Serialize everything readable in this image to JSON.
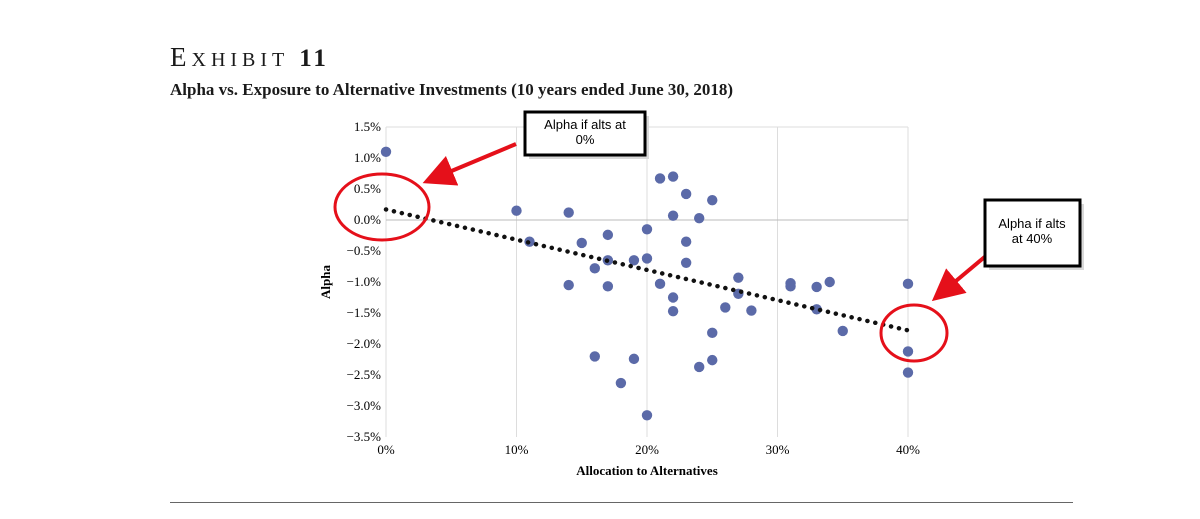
{
  "header": {
    "exhibit_first": "E",
    "exhibit_rest": "XHIBIT",
    "exhibit_number": "11",
    "subtitle": "Alpha vs. Exposure to Alternative Investments (10 years ended June 30, 2018)"
  },
  "callouts": {
    "left": "Alpha if alts at 0%",
    "right": "Alpha if alts at 40%"
  },
  "colors": {
    "points": "#5b6aa8",
    "trendline": "#111111",
    "annotation": "#e5101a",
    "grid": "#dddddd"
  },
  "chart_data": {
    "type": "scatter",
    "xlabel": "Allocation to Alternatives",
    "ylabel": "Alpha",
    "xlim": [
      0,
      40
    ],
    "ylim": [
      -3.5,
      1.5
    ],
    "x_ticks": [
      0,
      10,
      20,
      30,
      40
    ],
    "x_tick_labels": [
      "0%",
      "10%",
      "20%",
      "30%",
      "40%"
    ],
    "y_ticks": [
      1.5,
      1.0,
      0.5,
      0.0,
      -0.5,
      -1.0,
      -1.5,
      -2.0,
      -2.5,
      -3.0,
      -3.5
    ],
    "y_tick_labels": [
      "1.5%",
      "1.0%",
      "0.5%",
      "0.0%",
      "−0.5%",
      "−1.0%",
      "−1.5%",
      "−2.0%",
      "−2.5%",
      "−3.0%",
      "−3.5%"
    ],
    "grid": "vertical",
    "points": [
      {
        "x": 0,
        "y": 1.1
      },
      {
        "x": 10,
        "y": 0.15
      },
      {
        "x": 11,
        "y": -0.35
      },
      {
        "x": 14,
        "y": 0.12
      },
      {
        "x": 14,
        "y": -1.05
      },
      {
        "x": 15,
        "y": -0.37
      },
      {
        "x": 16,
        "y": -0.78
      },
      {
        "x": 16,
        "y": -2.2
      },
      {
        "x": 17,
        "y": -0.24
      },
      {
        "x": 17,
        "y": -0.65
      },
      {
        "x": 17,
        "y": -1.07
      },
      {
        "x": 18,
        "y": -2.63
      },
      {
        "x": 19,
        "y": -0.65
      },
      {
        "x": 19,
        "y": -2.24
      },
      {
        "x": 20,
        "y": -0.15
      },
      {
        "x": 20,
        "y": -0.62
      },
      {
        "x": 20,
        "y": -3.15
      },
      {
        "x": 21,
        "y": 0.67
      },
      {
        "x": 21,
        "y": -1.03
      },
      {
        "x": 22,
        "y": 0.7
      },
      {
        "x": 22,
        "y": 0.07
      },
      {
        "x": 22,
        "y": -1.25
      },
      {
        "x": 22,
        "y": -1.47
      },
      {
        "x": 23,
        "y": 0.42
      },
      {
        "x": 23,
        "y": -0.35
      },
      {
        "x": 23,
        "y": -0.69
      },
      {
        "x": 24,
        "y": 0.03
      },
      {
        "x": 24,
        "y": -2.37
      },
      {
        "x": 25,
        "y": 0.32
      },
      {
        "x": 25,
        "y": -1.82
      },
      {
        "x": 25,
        "y": -2.26
      },
      {
        "x": 26,
        "y": -1.41
      },
      {
        "x": 27,
        "y": -0.93
      },
      {
        "x": 27,
        "y": -1.19
      },
      {
        "x": 28,
        "y": -1.46
      },
      {
        "x": 31,
        "y": -1.02
      },
      {
        "x": 31,
        "y": -1.07
      },
      {
        "x": 33,
        "y": -1.08
      },
      {
        "x": 33,
        "y": -1.44
      },
      {
        "x": 34,
        "y": -1.0
      },
      {
        "x": 35,
        "y": -1.79
      },
      {
        "x": 40,
        "y": -1.03
      },
      {
        "x": 40,
        "y": -2.12
      },
      {
        "x": 40,
        "y": -2.46
      }
    ],
    "trendline": {
      "style": "dotted",
      "x_start": 0,
      "y_start": 0.17,
      "x_end": 40,
      "y_end": -1.78
    }
  }
}
